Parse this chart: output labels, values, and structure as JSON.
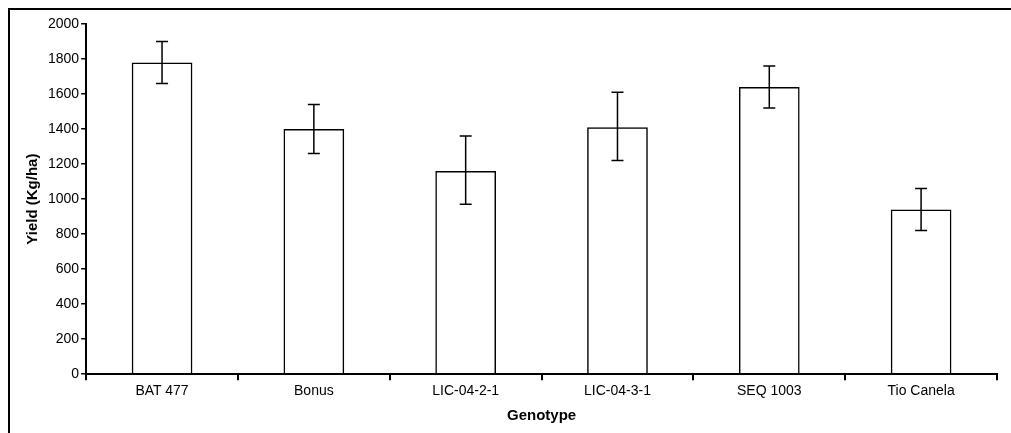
{
  "chart_data": {
    "type": "bar",
    "xlabel": "Genotype",
    "ylabel": "Yield (Kg/ha)",
    "categories": [
      "BAT 477",
      "Bonus",
      "LIC-04-2-1",
      "LIC-04-3-1",
      "SEQ 1003",
      "Tio Canela"
    ],
    "values": [
      1780,
      1400,
      1160,
      1410,
      1640,
      940
    ],
    "errors": [
      [
        1660,
        1900
      ],
      [
        1260,
        1540
      ],
      [
        970,
        1360
      ],
      [
        1220,
        1610
      ],
      [
        1520,
        1760
      ],
      [
        820,
        1060
      ]
    ],
    "color": "#000000",
    "ylim": [
      0,
      2000
    ],
    "yticks": [
      0,
      200,
      400,
      600,
      800,
      1000,
      1200,
      1400,
      1600,
      1800,
      2000
    ],
    "grid": false,
    "legend": false
  }
}
